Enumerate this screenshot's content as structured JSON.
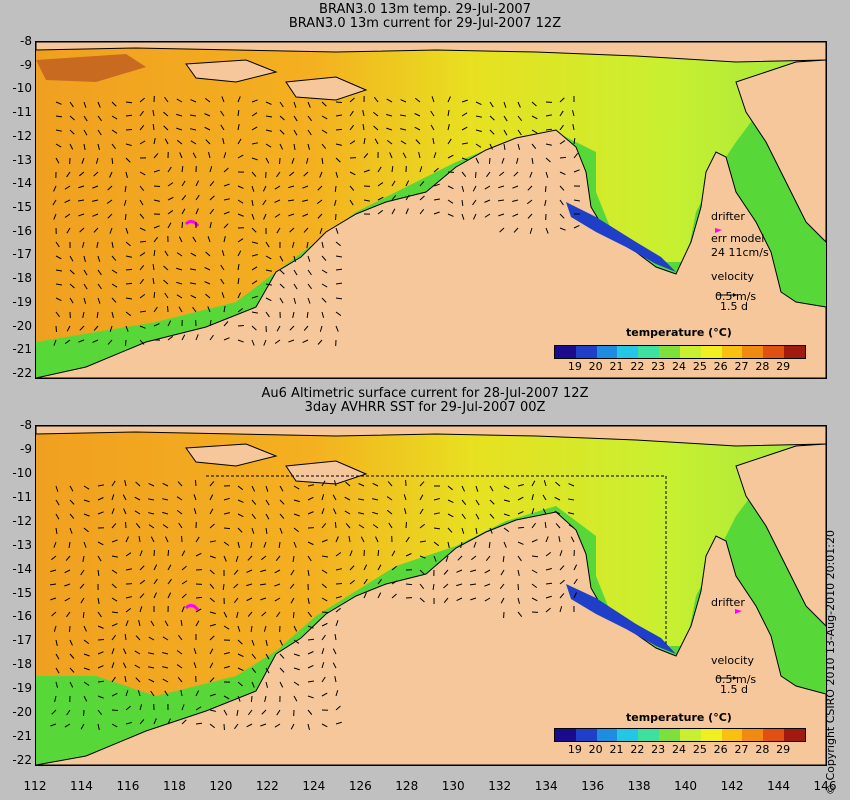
{
  "panels": [
    {
      "title1": "BRAN3.0 13m temp. 29-Jul-2007",
      "title2": "BRAN3.0 13m current for 29-Jul-2007 12Z",
      "drifter_label": "drifter",
      "err_label": "err model",
      "err_value": "24 11cm/s",
      "velocity_label": "velocity",
      "velocity_scale": "0.5 m/s",
      "velocity_time": "1.5 d",
      "colorbar_title": "temperature (°C)"
    },
    {
      "title1": "Au6 Altimetric surface current for 28-Jul-2007 12Z",
      "title2": "3day AVHRR SST for 29-Jul-2007 00Z",
      "drifter_label": "drifter",
      "velocity_label": "velocity",
      "velocity_scale": "0.5 m/s",
      "velocity_time": "1.5 d",
      "colorbar_title": "temperature (°C)"
    }
  ],
  "y_ticks": [
    "-8",
    "-9",
    "-10",
    "-11",
    "-12",
    "-13",
    "-14",
    "-15",
    "-16",
    "-17",
    "-18",
    "-19",
    "-20",
    "-21",
    "-22"
  ],
  "x_ticks": [
    "112",
    "114",
    "116",
    "118",
    "120",
    "122",
    "124",
    "126",
    "128",
    "130",
    "132",
    "134",
    "136",
    "138",
    "140",
    "142",
    "144",
    "146"
  ],
  "colorbar_ticks": [
    "19",
    "20",
    "21",
    "22",
    "23",
    "24",
    "25",
    "26",
    "27",
    "28",
    "29"
  ],
  "colorbar_colors": [
    "#1a0a8c",
    "#1f3fc8",
    "#1e8de0",
    "#24c6e6",
    "#3ee0a0",
    "#7ee03a",
    "#c8f030",
    "#f0f020",
    "#f8c010",
    "#f08a10",
    "#e05010",
    "#a01a10"
  ],
  "land_color": "#f6c79a",
  "copyright": "© Copyright CSIRO 2010   13-Aug-2010 20:01:20"
}
